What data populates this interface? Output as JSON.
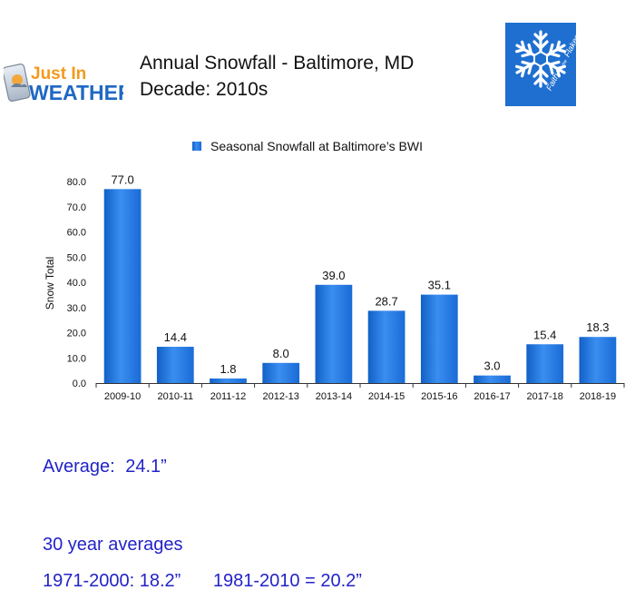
{
  "brand": {
    "just_in": "Just In",
    "weather": "WEATHER",
    "badge_text_top": "Faith",
    "badge_text_mid": "in the",
    "badge_text_bottom": "Flakes",
    "colors": {
      "orange": "#f39a1e",
      "blue": "#1f68c4",
      "badge_bg": "#1f6fd0"
    }
  },
  "header": {
    "title": "Annual Snowfall - Baltimore, MD",
    "subtitle": "Decade: 2010s"
  },
  "chart_data": {
    "type": "bar",
    "legend": "Seasonal Snowfall at Baltimore’s BWI",
    "legend_position": "top",
    "ylabel": "Snow Total",
    "xlabel": "",
    "ylim": [
      0,
      80
    ],
    "yticks": [
      "0.0",
      "10.0",
      "20.0",
      "30.0",
      "40.0",
      "50.0",
      "60.0",
      "70.0",
      "80.0"
    ],
    "grid": false,
    "categories": [
      "2009-10",
      "2010-11",
      "2011-12",
      "2012-13",
      "2013-14",
      "2014-15",
      "2015-16",
      "2016-17",
      "2017-18",
      "2018-19"
    ],
    "values": [
      77.0,
      14.4,
      1.8,
      8.0,
      39.0,
      28.7,
      35.1,
      3.0,
      15.4,
      18.3
    ],
    "value_labels": [
      "77.0",
      "14.4",
      "1.8",
      "8.0",
      "39.0",
      "28.7",
      "35.1",
      "3.0",
      "15.4",
      "18.3"
    ],
    "bar_color": "#2178dc"
  },
  "stats": {
    "average_label": "Average:",
    "average_value": "24.1”",
    "thirty_year_title": "30 year averages",
    "period1": "1971-2000: 18.2”",
    "period2": "1981-2010 = 20.2”",
    "color": "#2323c8"
  }
}
